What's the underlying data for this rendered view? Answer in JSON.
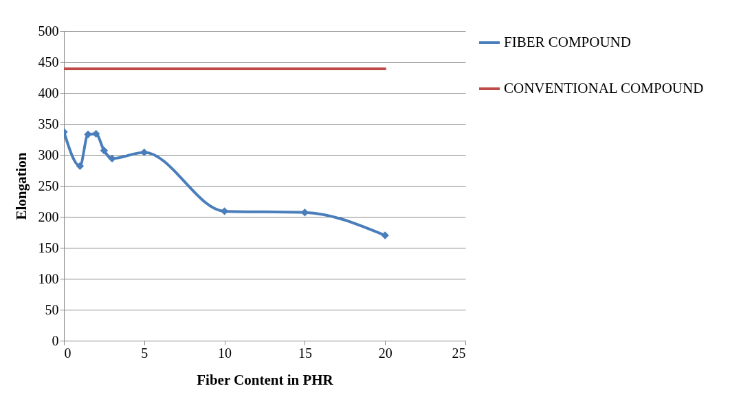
{
  "chart_data": {
    "type": "line",
    "xlabel": "Fiber Content in PHR",
    "ylabel": "Elongation",
    "x": [
      0,
      1,
      1.5,
      2,
      2.5,
      3,
      5,
      10,
      15,
      20
    ],
    "series": [
      {
        "name": "FIBER COMPOUND",
        "color": "#4a7ebb",
        "values": [
          337,
          282,
          333,
          334,
          307,
          294,
          304,
          209,
          207,
          170
        ]
      },
      {
        "name": "CONVENTIONAL COMPOUND",
        "color": "#be4b48",
        "type": "line",
        "marker": "none",
        "x": [
          0,
          20
        ],
        "values": [
          439,
          439
        ]
      }
    ],
    "xlim": [
      0,
      25
    ],
    "xticks": [
      0,
      5,
      10,
      15,
      20,
      25
    ],
    "ylim": [
      0,
      500
    ],
    "yticks": [
      0,
      50,
      100,
      150,
      200,
      250,
      300,
      350,
      400,
      450,
      500
    ],
    "grid": "y",
    "legend": "right",
    "marker": "diamond",
    "line_style": "solid"
  }
}
